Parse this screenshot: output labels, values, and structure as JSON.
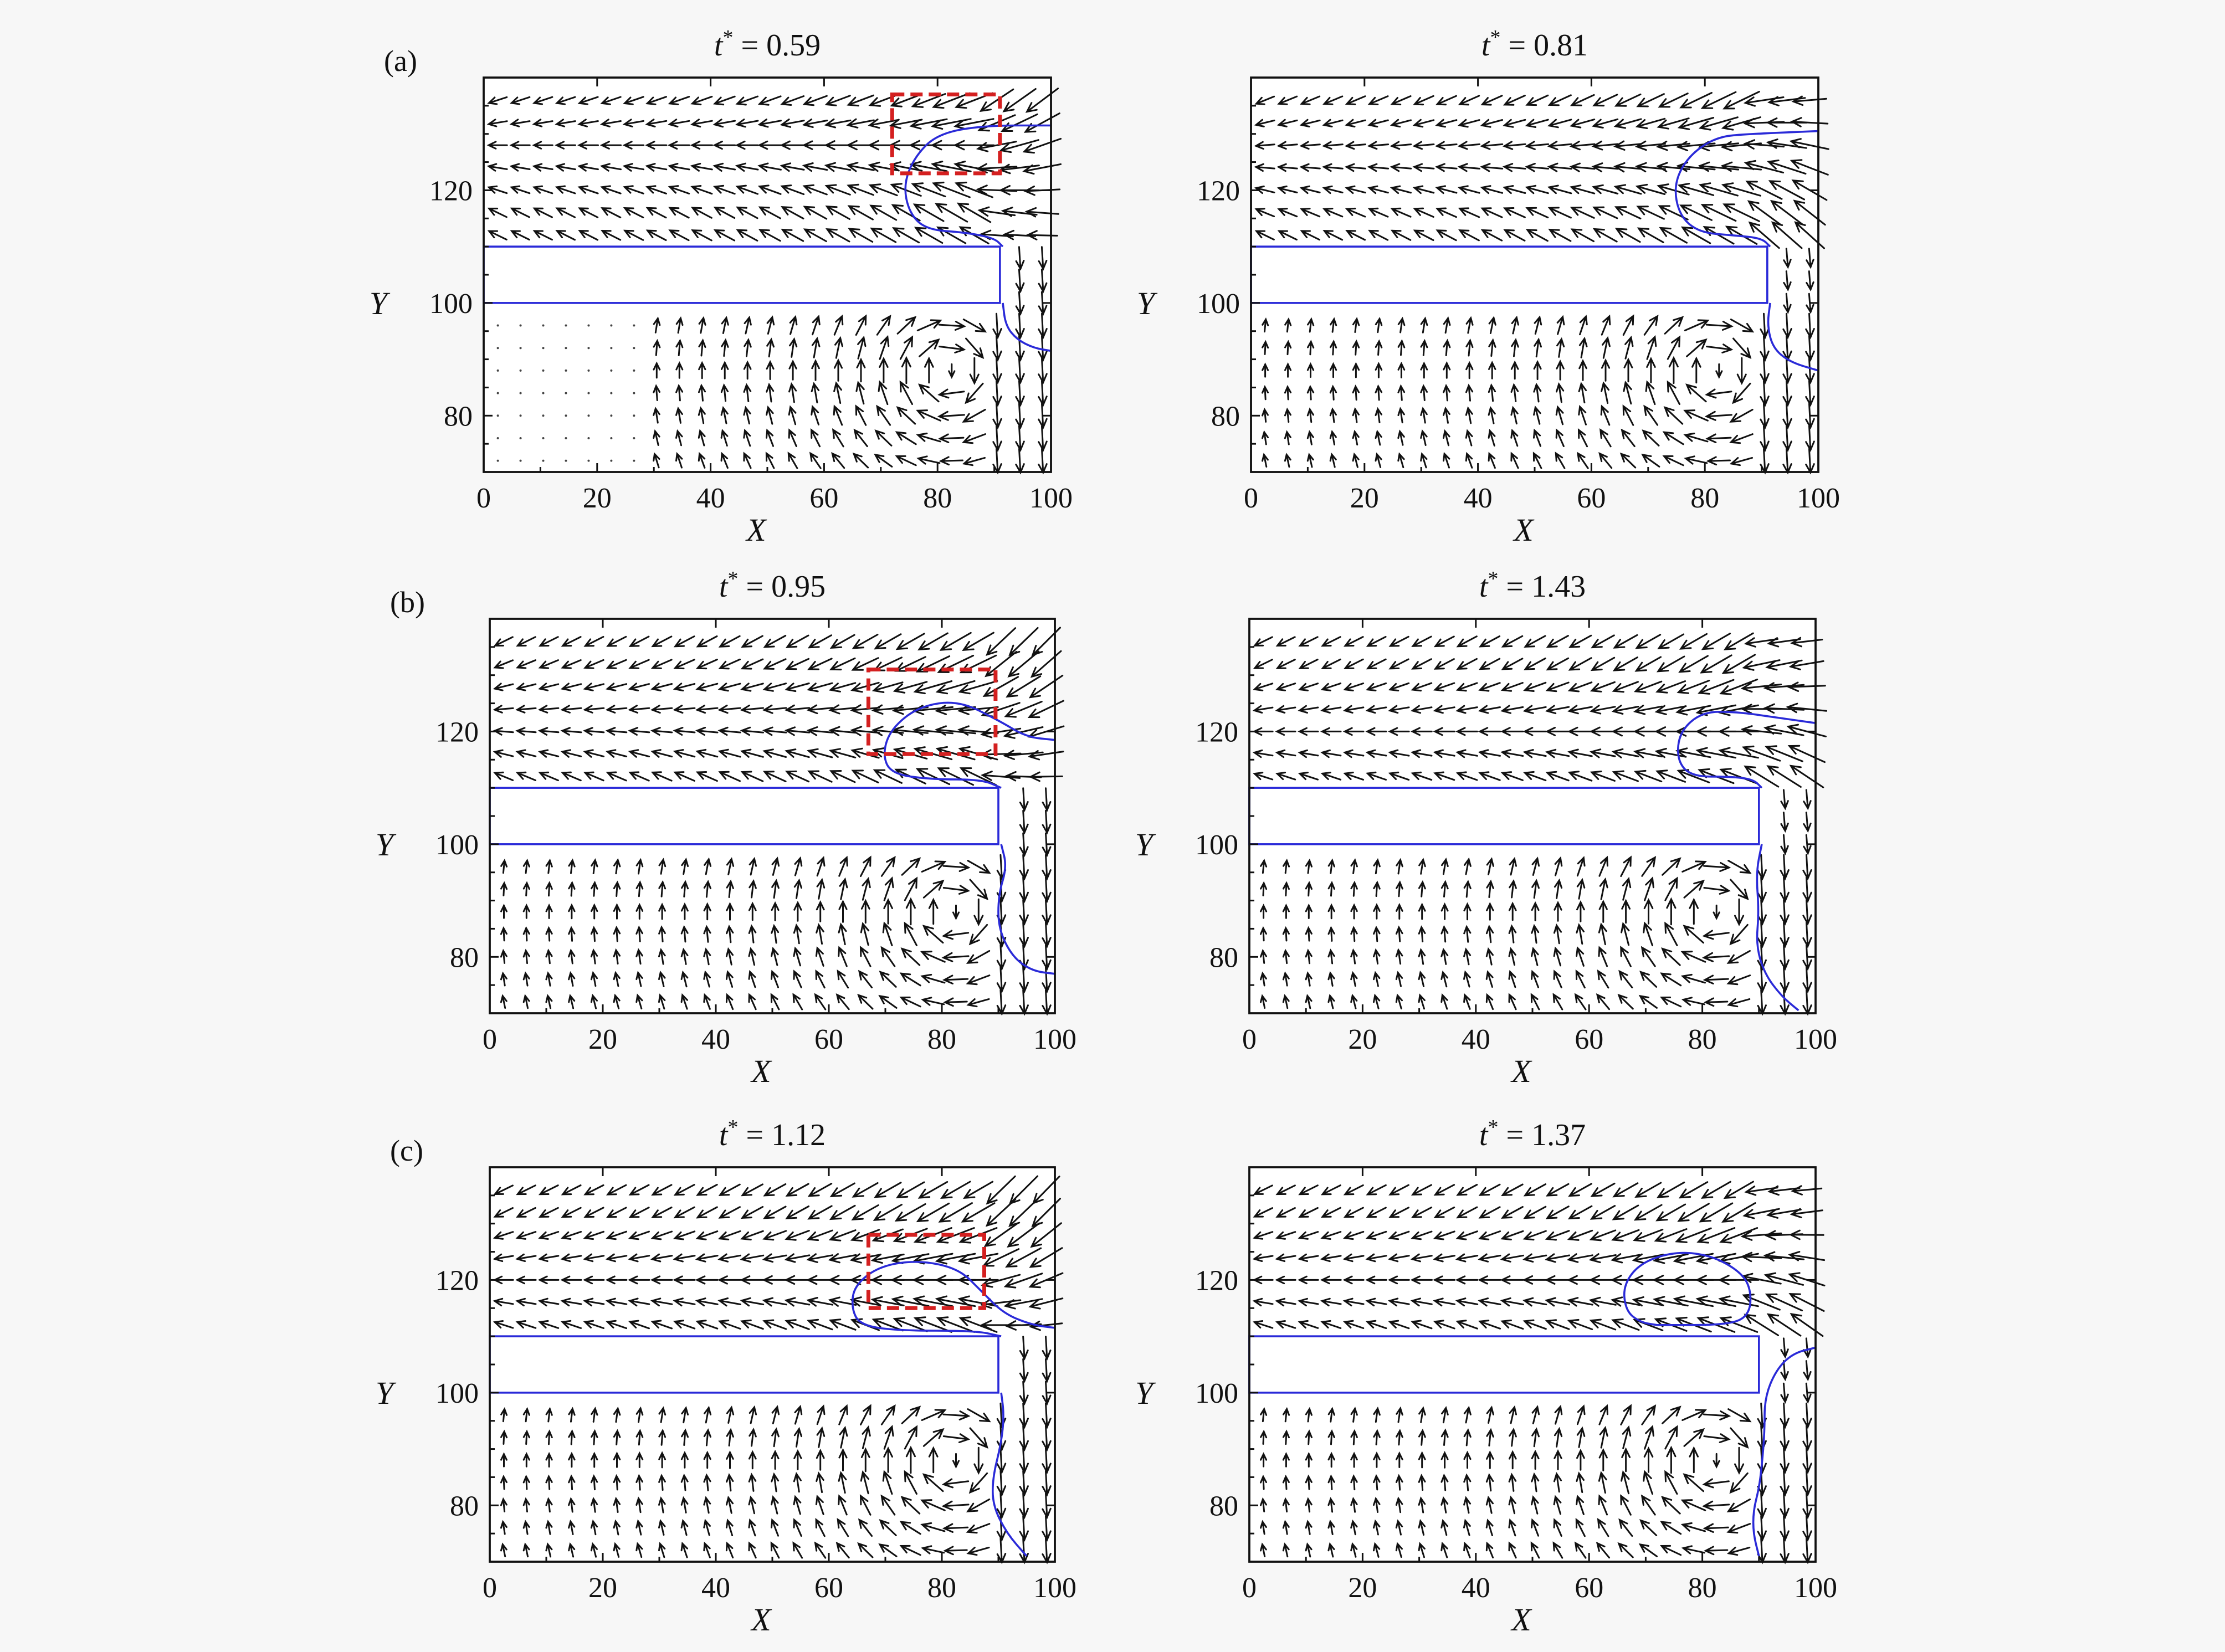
{
  "figure": {
    "background": "#f7f7f7",
    "colors": {
      "interface": "#2a2ad8",
      "highlight_box": "#d42020",
      "vectors": "#111111"
    }
  },
  "chart_data": [
    {
      "type": "vector_field",
      "panel_letter": "(a)",
      "title_symbol": "t",
      "title_super": "*",
      "title_value": "= 0.59",
      "xlabel": "X",
      "ylabel": "Y",
      "xlim": [
        0,
        100
      ],
      "ylim": [
        70,
        140
      ],
      "xticks": [
        "0",
        "20",
        "40",
        "60",
        "80",
        "100"
      ],
      "yticks": [
        "80",
        "100",
        "120"
      ],
      "plate": {
        "x0": 0,
        "x1": 91,
        "y0": 100,
        "y1": 110
      },
      "upper_interface": [
        [
          100,
          131.5
        ],
        [
          88,
          131.5
        ],
        [
          80,
          130
        ],
        [
          76,
          126
        ],
        [
          74,
          121
        ],
        [
          75,
          116
        ],
        [
          78,
          113
        ],
        [
          85,
          112.5
        ],
        [
          90,
          111.5
        ],
        [
          91.5,
          110
        ]
      ],
      "lower_interface": [
        [
          91.5,
          100
        ],
        [
          92,
          96
        ],
        [
          94,
          93.5
        ],
        [
          97,
          92
        ],
        [
          100,
          91.5
        ]
      ],
      "highlight_box": {
        "x0": 72,
        "x1": 91,
        "y0": 123,
        "y1": 137
      }
    },
    {
      "type": "vector_field",
      "panel_letter": "",
      "title_symbol": "t",
      "title_super": "*",
      "title_value": "= 0.81",
      "xlabel": "X",
      "ylabel": "Y",
      "xlim": [
        0,
        100
      ],
      "ylim": [
        70,
        140
      ],
      "xticks": [
        "0",
        "20",
        "40",
        "60",
        "80",
        "100"
      ],
      "yticks": [
        "80",
        "100",
        "120"
      ],
      "plate": {
        "x0": 0,
        "x1": 91,
        "y0": 100,
        "y1": 110
      },
      "upper_interface": [
        [
          100,
          130.5
        ],
        [
          88,
          130
        ],
        [
          82,
          129.5
        ],
        [
          77,
          126
        ],
        [
          74.5,
          121
        ],
        [
          75.5,
          115.5
        ],
        [
          79,
          112.5
        ],
        [
          85,
          112
        ],
        [
          90,
          111.5
        ],
        [
          91.5,
          110
        ]
      ],
      "lower_interface": [
        [
          91.5,
          100
        ],
        [
          91,
          96
        ],
        [
          92,
          92
        ],
        [
          95,
          89.5
        ],
        [
          100,
          88
        ]
      ],
      "highlight_box": null
    },
    {
      "type": "vector_field",
      "panel_letter": "(b)",
      "title_symbol": "t",
      "title_super": "*",
      "title_value": "= 0.95",
      "xlabel": "X",
      "ylabel": "Y",
      "xlim": [
        0,
        100
      ],
      "ylim": [
        70,
        140
      ],
      "xticks": [
        "0",
        "20",
        "40",
        "60",
        "80",
        "100"
      ],
      "yticks": [
        "80",
        "100",
        "120"
      ],
      "plate": {
        "x0": 0,
        "x1": 90,
        "y0": 100,
        "y1": 110
      },
      "upper_interface": [
        [
          100,
          118.5
        ],
        [
          95,
          119
        ],
        [
          90,
          122
        ],
        [
          83,
          125.5
        ],
        [
          76,
          124.5
        ],
        [
          71,
          120.5
        ],
        [
          69.5,
          116
        ],
        [
          71,
          112.5
        ],
        [
          78,
          111.5
        ],
        [
          87,
          111.5
        ],
        [
          90.5,
          110
        ]
      ],
      "lower_interface": [
        [
          90.5,
          100
        ],
        [
          91.5,
          96
        ],
        [
          90,
          91
        ],
        [
          90,
          85
        ],
        [
          92.5,
          80
        ],
        [
          96,
          77.5
        ],
        [
          100,
          77
        ]
      ],
      "highlight_box": {
        "x0": 67,
        "x1": 89.5,
        "y0": 116,
        "y1": 131
      }
    },
    {
      "type": "vector_field",
      "panel_letter": "",
      "title_symbol": "t",
      "title_super": "*",
      "title_value": "= 1.43",
      "xlabel": "X",
      "ylabel": "Y",
      "xlim": [
        0,
        100
      ],
      "ylim": [
        70,
        140
      ],
      "xticks": [
        "0",
        "20",
        "40",
        "60",
        "80",
        "100"
      ],
      "yticks": [
        "80",
        "100",
        "120"
      ],
      "plate": {
        "x0": 0,
        "x1": 90,
        "y0": 100,
        "y1": 110
      },
      "upper_interface": [
        [
          100,
          121.5
        ],
        [
          93,
          122.5
        ],
        [
          86,
          123.5
        ],
        [
          80,
          123.5
        ],
        [
          76,
          120
        ],
        [
          75.5,
          115
        ],
        [
          78,
          112
        ],
        [
          85,
          112
        ],
        [
          89,
          111.5
        ],
        [
          90.5,
          110
        ]
      ],
      "lower_interface": [
        [
          90.5,
          100
        ],
        [
          89.5,
          95
        ],
        [
          90,
          88
        ],
        [
          89.5,
          82
        ],
        [
          91,
          77
        ],
        [
          94,
          73
        ],
        [
          97,
          70.5
        ]
      ],
      "highlight_box": null
    },
    {
      "type": "vector_field",
      "panel_letter": "(c)",
      "title_symbol": "t",
      "title_super": "*",
      "title_value": "= 1.12",
      "xlabel": "X",
      "ylabel": "Y",
      "xlim": [
        0,
        100
      ],
      "ylim": [
        70,
        140
      ],
      "xticks": [
        "0",
        "20",
        "40",
        "60",
        "80",
        "100"
      ],
      "yticks": [
        "80",
        "100",
        "120"
      ],
      "plate": {
        "x0": 0,
        "x1": 90,
        "y0": 100,
        "y1": 110
      },
      "upper_interface": [
        [
          100,
          111.5
        ],
        [
          96,
          112
        ],
        [
          91,
          114
        ],
        [
          87,
          118
        ],
        [
          83,
          122
        ],
        [
          76,
          123.5
        ],
        [
          69,
          122.5
        ],
        [
          64.5,
          119
        ],
        [
          64,
          115
        ],
        [
          65.5,
          112
        ],
        [
          72,
          111
        ],
        [
          86,
          111
        ],
        [
          90.5,
          110
        ]
      ],
      "lower_interface": [
        [
          90.5,
          100
        ],
        [
          91,
          96
        ],
        [
          90.5,
          91
        ],
        [
          89,
          85
        ],
        [
          89,
          80
        ],
        [
          91.5,
          75
        ],
        [
          95,
          71
        ]
      ],
      "highlight_box": {
        "x0": 67,
        "x1": 87.5,
        "y0": 115,
        "y1": 128
      }
    },
    {
      "type": "vector_field",
      "panel_letter": "",
      "title_symbol": "t",
      "title_super": "*",
      "title_value": "= 1.37",
      "xlabel": "X",
      "ylabel": "Y",
      "xlim": [
        0,
        100
      ],
      "ylim": [
        70,
        140
      ],
      "xticks": [
        "0",
        "20",
        "40",
        "60",
        "80",
        "100"
      ],
      "yticks": [
        "80",
        "100",
        "120"
      ],
      "plate": {
        "x0": 0,
        "x1": 90,
        "y0": 100,
        "y1": 110
      },
      "closed_droplet": [
        [
          72,
          112
        ],
        [
          85,
          112
        ],
        [
          88.5,
          114
        ],
        [
          88.5,
          119
        ],
        [
          86,
          122
        ],
        [
          81,
          124.5
        ],
        [
          75,
          125
        ],
        [
          69,
          123
        ],
        [
          66,
          119
        ],
        [
          66.5,
          114.5
        ],
        [
          69,
          112.5
        ],
        [
          72,
          112
        ]
      ],
      "upper_interface": [],
      "lower_interface": [
        [
          100,
          108
        ],
        [
          96,
          107
        ],
        [
          93,
          104
        ],
        [
          91,
          99
        ],
        [
          91,
          93
        ],
        [
          90.5,
          87
        ],
        [
          90,
          83
        ],
        [
          89,
          79
        ],
        [
          89,
          75
        ],
        [
          90,
          71
        ]
      ],
      "highlight_box": null
    }
  ]
}
